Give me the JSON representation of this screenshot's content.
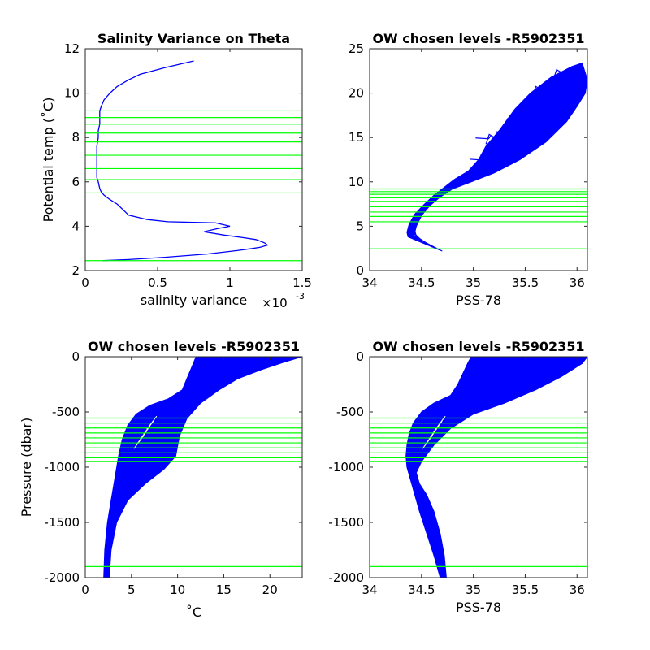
{
  "chart_data": [
    {
      "type": "line",
      "title": "Salinity Variance on Theta",
      "xlabel": "salinity variance",
      "xexponent_base": "×10",
      "xexponent_power": "-3",
      "ylabel": "Potential temp (˚C)",
      "xlim": [
        0,
        1.5
      ],
      "ylim": [
        2,
        12
      ],
      "xticks": [
        0,
        0.5,
        1,
        1.5
      ],
      "xtick_labels": [
        "0",
        "0.5",
        "1",
        "1.5"
      ],
      "yticks": [
        2,
        4,
        6,
        8,
        10,
        12
      ],
      "ytick_labels": [
        "2",
        "4",
        "6",
        "8",
        "10",
        "12"
      ],
      "grid": false,
      "series": [
        {
          "color": "#0000ff",
          "points": [
            [
              0.75,
              11.45
            ],
            [
              0.55,
              11.15
            ],
            [
              0.38,
              10.85
            ],
            [
              0.3,
              10.6
            ],
            [
              0.22,
              10.3
            ],
            [
              0.17,
              10.0
            ],
            [
              0.13,
              9.7
            ],
            [
              0.11,
              9.4
            ],
            [
              0.1,
              9.2
            ],
            [
              0.1,
              8.9
            ],
            [
              0.1,
              8.6
            ],
            [
              0.09,
              8.3
            ],
            [
              0.09,
              8.0
            ],
            [
              0.08,
              7.6
            ],
            [
              0.08,
              7.3
            ],
            [
              0.08,
              6.9
            ],
            [
              0.08,
              6.5
            ],
            [
              0.08,
              6.2
            ],
            [
              0.09,
              6.0
            ],
            [
              0.1,
              5.7
            ],
            [
              0.11,
              5.55
            ],
            [
              0.13,
              5.4
            ],
            [
              0.17,
              5.2
            ],
            [
              0.22,
              5.0
            ],
            [
              0.3,
              4.5
            ],
            [
              0.43,
              4.3
            ],
            [
              0.57,
              4.2
            ],
            [
              0.9,
              4.15
            ],
            [
              1.0,
              4.0
            ],
            [
              0.92,
              3.9
            ],
            [
              0.82,
              3.75
            ],
            [
              0.96,
              3.6
            ],
            [
              1.08,
              3.5
            ],
            [
              1.18,
              3.4
            ],
            [
              1.24,
              3.25
            ],
            [
              1.26,
              3.15
            ],
            [
              1.21,
              3.05
            ],
            [
              1.16,
              3.0
            ],
            [
              1.05,
              2.9
            ],
            [
              0.85,
              2.75
            ],
            [
              0.55,
              2.6
            ],
            [
              0.3,
              2.5
            ],
            [
              0.12,
              2.45
            ]
          ]
        }
      ],
      "hlines": {
        "color": "#00ff00",
        "values": [
          9.2,
          8.9,
          8.6,
          8.2,
          7.8,
          7.2,
          6.6,
          6.1,
          5.5,
          2.45
        ]
      }
    },
    {
      "type": "line",
      "title": "OW chosen levels -R5902351",
      "xlabel": "PSS-78",
      "ylabel": "",
      "xlim": [
        34,
        36.1
      ],
      "ylim": [
        0,
        25
      ],
      "xticks": [
        34,
        34.5,
        35,
        35.5,
        36
      ],
      "xtick_labels": [
        "34",
        "34.5",
        "35",
        "35.5",
        "36"
      ],
      "yticks": [
        0,
        5,
        10,
        15,
        20,
        25
      ],
      "ytick_labels": [
        "0",
        "5",
        "10",
        "15",
        "20",
        "25"
      ],
      "grid": false,
      "series": [
        {
          "color": "#0000ff",
          "band": {
            "left": [
              [
                34.37,
                3.8
              ],
              [
                34.36,
                4.3
              ],
              [
                34.38,
                5.2
              ],
              [
                34.43,
                6.3
              ],
              [
                34.52,
                7.4
              ],
              [
                34.62,
                8.5
              ],
              [
                34.72,
                9.4
              ],
              [
                34.82,
                10.3
              ],
              [
                34.95,
                11.2
              ],
              [
                35.05,
                12.5
              ],
              [
                35.12,
                14.0
              ],
              [
                35.25,
                15.8
              ],
              [
                35.4,
                18.2
              ],
              [
                35.55,
                20.0
              ],
              [
                35.75,
                21.8
              ],
              [
                35.95,
                23.0
              ],
              [
                36.05,
                23.4
              ]
            ],
            "right": [
              [
                34.7,
                2.2
              ],
              [
                34.6,
                2.8
              ],
              [
                34.48,
                3.3
              ],
              [
                34.43,
                4.0
              ],
              [
                34.45,
                5.0
              ],
              [
                34.5,
                6.2
              ],
              [
                34.58,
                7.3
              ],
              [
                34.68,
                8.3
              ],
              [
                34.8,
                9.2
              ],
              [
                34.98,
                10.0
              ],
              [
                35.2,
                11.0
              ],
              [
                35.45,
                12.5
              ],
              [
                35.7,
                14.5
              ],
              [
                35.9,
                16.8
              ],
              [
                36.0,
                18.5
              ],
              [
                36.08,
                20.0
              ],
              [
                36.1,
                21.5
              ]
            ]
          },
          "spikes": [
            [
              35.2,
              14.8
            ],
            [
              35.3,
              16.2
            ],
            [
              35.15,
              13.6
            ],
            [
              35.35,
              15.4
            ],
            [
              35.45,
              17.0
            ],
            [
              35.1,
              15.5
            ],
            [
              35.55,
              16.3
            ],
            [
              35.25,
              14.2
            ],
            [
              35.4,
              17.6
            ],
            [
              35.6,
              18.4
            ],
            [
              35.7,
              19.6
            ],
            [
              35.8,
              20.8
            ],
            [
              35.85,
              22.1
            ],
            [
              35.92,
              21.2
            ],
            [
              36.0,
              22.6
            ],
            [
              35.5,
              19.0
            ],
            [
              35.35,
              13.2
            ],
            [
              35.05,
              13.1
            ],
            [
              35.65,
              20.2
            ],
            [
              35.75,
              18.0
            ]
          ]
        }
      ],
      "hlines": {
        "color": "#00ff00",
        "values": [
          9.2,
          8.9,
          8.6,
          8.2,
          7.8,
          7.2,
          6.6,
          6.1,
          5.5,
          2.45
        ]
      }
    },
    {
      "type": "line",
      "title": "OW chosen levels -R5902351",
      "xlabel": "˚C",
      "ylabel": "Pressure (dbar)",
      "xlim": [
        0,
        23.5
      ],
      "ylim": [
        -2000,
        0
      ],
      "xticks": [
        0,
        5,
        10,
        15,
        20
      ],
      "xtick_labels": [
        "0",
        "5",
        "10",
        "15",
        "20"
      ],
      "yticks": [
        -2000,
        -1500,
        -1000,
        -500,
        0
      ],
      "ytick_labels": [
        "-2000",
        "-1500",
        "-1000",
        "-500",
        "0"
      ],
      "grid": false,
      "series": [
        {
          "color": "#0000ff",
          "band": {
            "left": [
              [
                2.0,
                -2000
              ],
              [
                2.1,
                -1750
              ],
              [
                2.4,
                -1500
              ],
              [
                2.8,
                -1300
              ],
              [
                3.2,
                -1100
              ],
              [
                3.6,
                -900
              ],
              [
                4.0,
                -750
              ],
              [
                4.6,
                -620
              ],
              [
                5.5,
                -520
              ],
              [
                7.0,
                -440
              ],
              [
                9.0,
                -380
              ],
              [
                10.5,
                -300
              ],
              [
                11.0,
                -200
              ],
              [
                11.5,
                -100
              ],
              [
                12.0,
                0
              ]
            ],
            "right": [
              [
                2.6,
                -2000
              ],
              [
                2.8,
                -1750
              ],
              [
                3.4,
                -1500
              ],
              [
                4.6,
                -1300
              ],
              [
                6.5,
                -1150
              ],
              [
                8.5,
                -1020
              ],
              [
                9.8,
                -900
              ],
              [
                10.2,
                -720
              ],
              [
                11.0,
                -560
              ],
              [
                12.5,
                -420
              ],
              [
                14.5,
                -300
              ],
              [
                16.5,
                -200
              ],
              [
                19.0,
                -120
              ],
              [
                21.5,
                -50
              ],
              [
                23.5,
                0
              ]
            ]
          },
          "spikes": []
        }
      ],
      "hlines": {
        "color": "#00ff00",
        "values": [
          -555,
          -600,
          -645,
          -690,
          -735,
          -780,
          -825,
          -870,
          -915,
          -950,
          -1900
        ]
      }
    },
    {
      "type": "line",
      "title": "OW chosen levels -R5902351",
      "xlabel": "PSS-78",
      "ylabel": "",
      "xlim": [
        34,
        36.1
      ],
      "ylim": [
        -2000,
        0
      ],
      "xticks": [
        34,
        34.5,
        35,
        35.5,
        36
      ],
      "xtick_labels": [
        "34",
        "34.5",
        "35",
        "35.5",
        "36"
      ],
      "yticks": [
        -2000,
        -1500,
        -1000,
        -500,
        0
      ],
      "ytick_labels": [
        "-2000",
        "-1500",
        "-1000",
        "-500",
        "0"
      ],
      "grid": false,
      "series": [
        {
          "color": "#0000ff",
          "band": {
            "left": [
              [
                34.68,
                -2000
              ],
              [
                34.62,
                -1800
              ],
              [
                34.55,
                -1600
              ],
              [
                34.48,
                -1400
              ],
              [
                34.42,
                -1200
              ],
              [
                34.36,
                -1000
              ],
              [
                34.35,
                -900
              ],
              [
                34.36,
                -800
              ],
              [
                34.38,
                -700
              ],
              [
                34.42,
                -600
              ],
              [
                34.5,
                -500
              ],
              [
                34.62,
                -420
              ],
              [
                34.78,
                -350
              ],
              [
                34.85,
                -250
              ],
              [
                34.9,
                -150
              ],
              [
                34.95,
                -50
              ],
              [
                34.98,
                0
              ]
            ],
            "right": [
              [
                34.74,
                -2000
              ],
              [
                34.72,
                -1800
              ],
              [
                34.68,
                -1600
              ],
              [
                34.62,
                -1400
              ],
              [
                34.55,
                -1250
              ],
              [
                34.48,
                -1150
              ],
              [
                34.45,
                -1050
              ],
              [
                34.5,
                -950
              ],
              [
                34.62,
                -800
              ],
              [
                34.78,
                -650
              ],
              [
                35.0,
                -520
              ],
              [
                35.3,
                -420
              ],
              [
                35.6,
                -300
              ],
              [
                35.85,
                -180
              ],
              [
                36.05,
                -60
              ],
              [
                36.1,
                0
              ]
            ]
          },
          "spikes": []
        }
      ],
      "hlines": {
        "color": "#00ff00",
        "values": [
          -555,
          -600,
          -645,
          -690,
          -735,
          -780,
          -825,
          -870,
          -915,
          -950,
          -1900
        ]
      }
    }
  ]
}
